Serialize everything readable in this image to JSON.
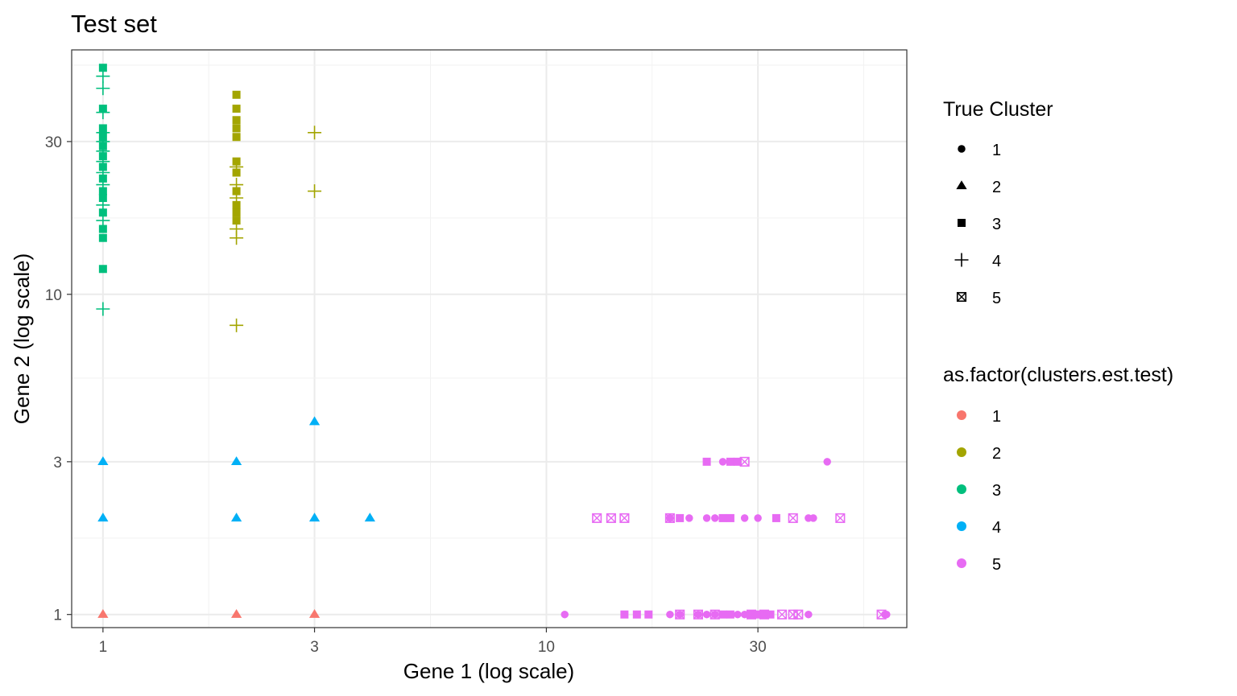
{
  "chart_data": {
    "type": "scatter",
    "title": "Test set",
    "xlabel": "Gene 1 (log scale)",
    "ylabel": "Gene 2 (log scale)",
    "x_scale": "log10",
    "y_scale": "log10",
    "xlim": [
      0.85,
      65
    ],
    "ylim": [
      0.91,
      58
    ],
    "x_ticks": [
      1,
      3,
      10,
      30
    ],
    "x_tick_labels": [
      "1",
      "3",
      "10",
      "30"
    ],
    "y_ticks": [
      1,
      3,
      10,
      30
    ],
    "y_tick_labels": [
      "1",
      "3",
      "10",
      "30"
    ],
    "grid": true,
    "legend_position": "right",
    "colors": {
      "1": "#F8766D",
      "2": "#A3A500",
      "3": "#00BF7D",
      "4": "#00B0F6",
      "5": "#E76BF3"
    },
    "legends": [
      {
        "title": "True Cluster",
        "kind": "shape",
        "items": [
          {
            "label": "1",
            "shape": "circle"
          },
          {
            "label": "2",
            "shape": "triangle"
          },
          {
            "label": "3",
            "shape": "square"
          },
          {
            "label": "4",
            "shape": "plus"
          },
          {
            "label": "5",
            "shape": "square-x"
          }
        ]
      },
      {
        "title": "as.factor(clusters.est.test)",
        "kind": "color",
        "items": [
          {
            "label": "1",
            "color": "#F8766D"
          },
          {
            "label": "2",
            "color": "#A3A500"
          },
          {
            "label": "3",
            "color": "#00BF7D"
          },
          {
            "label": "4",
            "color": "#00B0F6"
          },
          {
            "label": "5",
            "color": "#E76BF3"
          }
        ]
      }
    ],
    "series": [
      {
        "est": "1",
        "true": "2",
        "points": [
          [
            1,
            1
          ],
          [
            2,
            1
          ],
          [
            3,
            1
          ]
        ]
      },
      {
        "est": "4",
        "true": "2",
        "points": [
          [
            1,
            3
          ],
          [
            1,
            2
          ],
          [
            2,
            3
          ],
          [
            2,
            2
          ],
          [
            3,
            4
          ],
          [
            3,
            2
          ],
          [
            4,
            2
          ]
        ]
      },
      {
        "est": "3",
        "true": "3",
        "points": [
          [
            1,
            51
          ],
          [
            1,
            38
          ],
          [
            1,
            33
          ],
          [
            1,
            31
          ],
          [
            1,
            29
          ],
          [
            1,
            27
          ],
          [
            1,
            25
          ],
          [
            1,
            23
          ],
          [
            1,
            21
          ],
          [
            1,
            20
          ],
          [
            1,
            18
          ],
          [
            1,
            16
          ],
          [
            1,
            15
          ],
          [
            1,
            12
          ]
        ]
      },
      {
        "est": "3",
        "true": "4",
        "points": [
          [
            1,
            48
          ],
          [
            1,
            44
          ],
          [
            1,
            37
          ],
          [
            1,
            32
          ],
          [
            1,
            30
          ],
          [
            1,
            28
          ],
          [
            1,
            26
          ],
          [
            1,
            24
          ],
          [
            1,
            22
          ],
          [
            1,
            19
          ],
          [
            1,
            17
          ],
          [
            1,
            9
          ]
        ]
      },
      {
        "est": "2",
        "true": "3",
        "points": [
          [
            2,
            42
          ],
          [
            2,
            38
          ],
          [
            2,
            35
          ],
          [
            2,
            33
          ],
          [
            2,
            31
          ],
          [
            2,
            26
          ],
          [
            2,
            24
          ],
          [
            2,
            21
          ],
          [
            2,
            19
          ],
          [
            2,
            18
          ],
          [
            2,
            17
          ]
        ]
      },
      {
        "est": "2",
        "true": "4",
        "points": [
          [
            2,
            25
          ],
          [
            2,
            22
          ],
          [
            2,
            20
          ],
          [
            2,
            16
          ],
          [
            2,
            15
          ],
          [
            2,
            8
          ],
          [
            3,
            32
          ],
          [
            3,
            21
          ]
        ]
      },
      {
        "est": "5",
        "true": "1",
        "points": [
          [
            11,
            1
          ],
          [
            19,
            1
          ],
          [
            20,
            1
          ],
          [
            22,
            1
          ],
          [
            23,
            1
          ],
          [
            24,
            1
          ],
          [
            25,
            1
          ],
          [
            27,
            1
          ],
          [
            28,
            1
          ],
          [
            29,
            1
          ],
          [
            30,
            1
          ],
          [
            31,
            1
          ],
          [
            39,
            1
          ],
          [
            58,
            1
          ],
          [
            58.5,
            1
          ],
          [
            19,
            2
          ],
          [
            21,
            2
          ],
          [
            23,
            2
          ],
          [
            24,
            2
          ],
          [
            28,
            2
          ],
          [
            30,
            2
          ],
          [
            39,
            2
          ],
          [
            40,
            2
          ],
          [
            25,
            3
          ],
          [
            26,
            3
          ],
          [
            43,
            3
          ]
        ]
      },
      {
        "est": "5",
        "true": "3",
        "points": [
          [
            15,
            1
          ],
          [
            16,
            1
          ],
          [
            17,
            1
          ],
          [
            25,
            1
          ],
          [
            26,
            1
          ],
          [
            29,
            1
          ],
          [
            30,
            1
          ],
          [
            31,
            1
          ],
          [
            32,
            1
          ],
          [
            20,
            2
          ],
          [
            25,
            2
          ],
          [
            26,
            2
          ],
          [
            33,
            2
          ],
          [
            23,
            3
          ],
          [
            26,
            3
          ],
          [
            27,
            3
          ]
        ]
      },
      {
        "est": "5",
        "true": "5",
        "points": [
          [
            20,
            1
          ],
          [
            22,
            1
          ],
          [
            24,
            1
          ],
          [
            29,
            1
          ],
          [
            31,
            1
          ],
          [
            34,
            1
          ],
          [
            36,
            1
          ],
          [
            37,
            1
          ],
          [
            57,
            1
          ],
          [
            13,
            2
          ],
          [
            14,
            2
          ],
          [
            15,
            2
          ],
          [
            19,
            2
          ],
          [
            36,
            2
          ],
          [
            46,
            2
          ],
          [
            28,
            3
          ]
        ]
      }
    ]
  }
}
